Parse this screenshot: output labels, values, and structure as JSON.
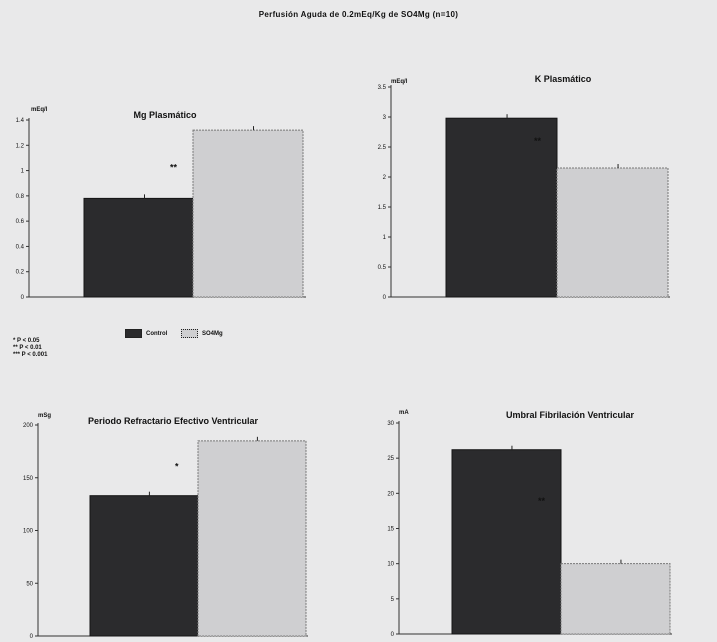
{
  "header": {
    "title": "Perfusión Aguda de 0.2mEq/Kg de SO4Mg (n=10)"
  },
  "legend": {
    "control": "Control",
    "sulfate": "SO4Mg"
  },
  "significance": [
    "* P < 0.05",
    "** P < 0.01",
    "*** P < 0.001"
  ],
  "colors": {
    "control": "#2b2b2d",
    "sulfate": "#cfcfd1",
    "background": "#e9e9ea"
  },
  "chart_data": [
    {
      "type": "bar",
      "title": "Mg Plasmático",
      "ylabel": "mEq/l",
      "categories": [
        "Control",
        "SO4Mg"
      ],
      "values": [
        0.78,
        1.32
      ],
      "ylim": [
        0,
        1.4
      ],
      "ticks": [
        "0",
        "0.2",
        "0.4",
        "0.6",
        "0.8",
        "1",
        "1.2",
        "1.4"
      ],
      "tick_values": [
        0,
        0.2,
        0.4,
        0.6,
        0.8,
        1.0,
        1.2,
        1.4
      ],
      "annotation": "**",
      "annotation_y": 1.0
    },
    {
      "type": "bar",
      "title": "K Plasmático",
      "ylabel": "mEq/l",
      "categories": [
        "Control",
        "SO4Mg"
      ],
      "values": [
        2.98,
        2.15
      ],
      "ylim": [
        0,
        3.5
      ],
      "ticks": [
        "0",
        "0.5",
        "1",
        "1.5",
        "2",
        "2.5",
        "3",
        "3.5"
      ],
      "tick_values": [
        0,
        0.5,
        1.0,
        1.5,
        2.0,
        2.5,
        3.0,
        3.5
      ],
      "annotation": "**",
      "annotation_y": 2.55
    },
    {
      "type": "bar",
      "title": "Periodo Refractario Efectivo Ventricular",
      "ylabel": "mSg",
      "categories": [
        "Control",
        "SO4Mg"
      ],
      "values": [
        133,
        185
      ],
      "ylim": [
        0,
        200
      ],
      "ticks": [
        "0",
        "50",
        "100",
        "150",
        "200"
      ],
      "tick_values": [
        0,
        50,
        100,
        150,
        200
      ],
      "annotation": "*",
      "annotation_y": 158
    },
    {
      "type": "bar",
      "title": "Umbral Fibrilación Ventricular",
      "ylabel": "mA",
      "categories": [
        "Control",
        "SO4Mg"
      ],
      "values": [
        26.2,
        10.0
      ],
      "ylim": [
        0,
        30
      ],
      "ticks": [
        "0",
        "5",
        "10",
        "15",
        "20",
        "25",
        "30"
      ],
      "tick_values": [
        0,
        5,
        10,
        15,
        20,
        25,
        30
      ],
      "annotation": "**",
      "annotation_y": 18.5
    }
  ]
}
